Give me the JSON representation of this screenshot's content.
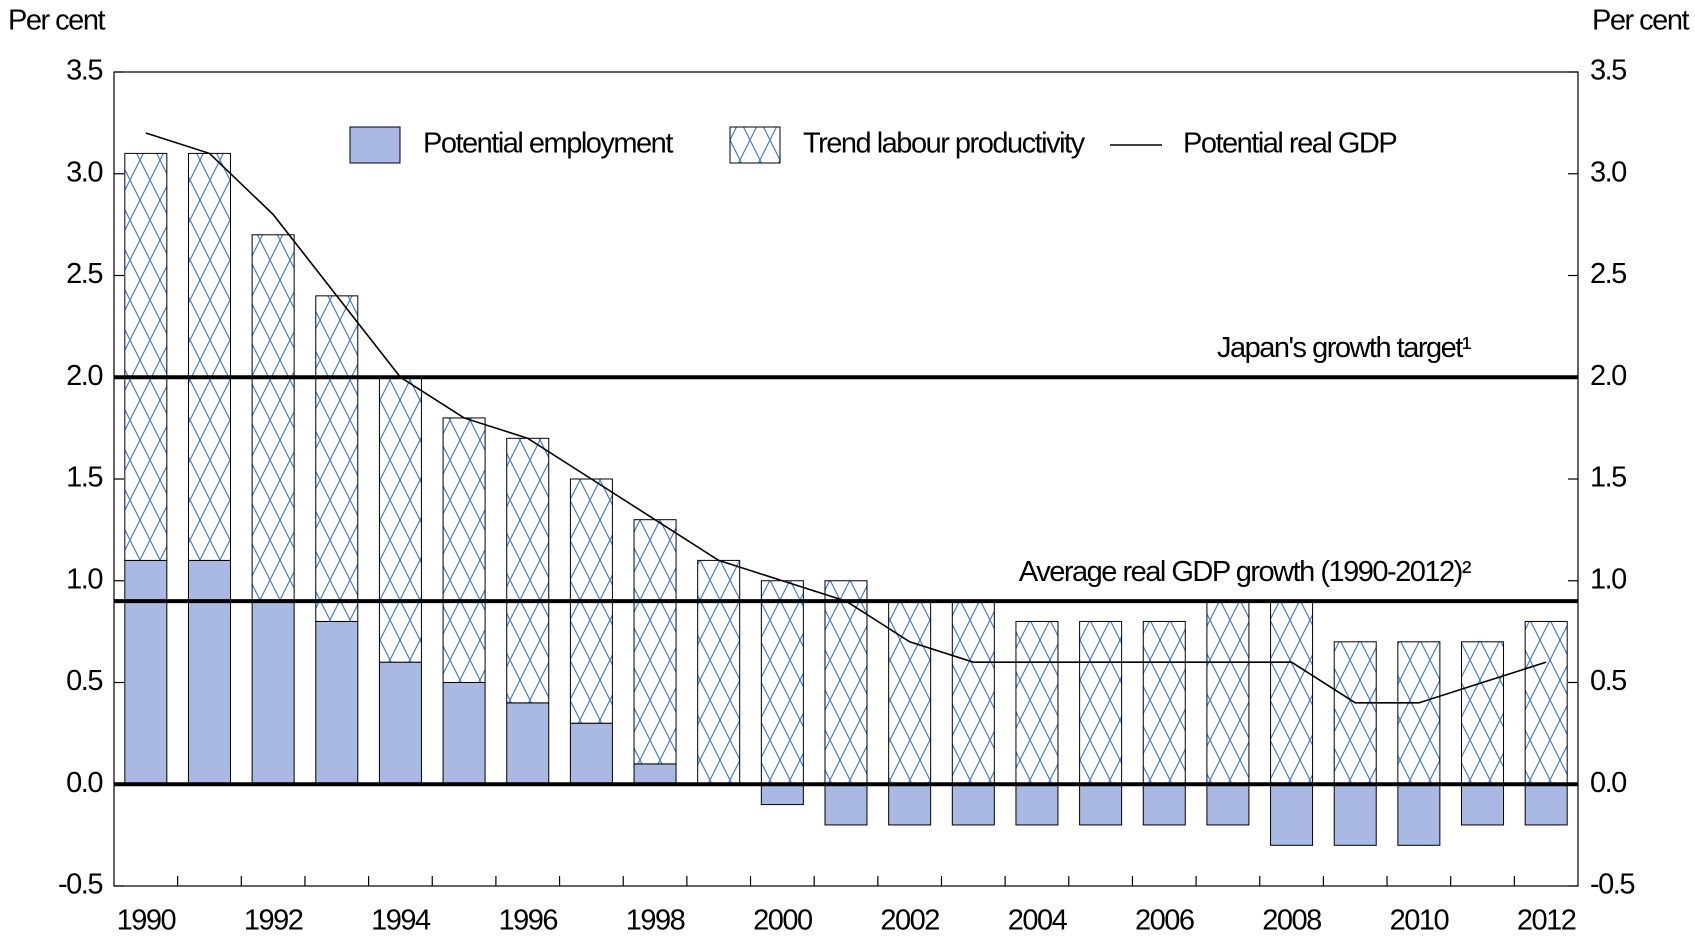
{
  "chart_data": {
    "type": "bar",
    "subtype": "stacked",
    "ylabel": "Per cent",
    "y2label": "Per cent",
    "categories": [
      "1990",
      null,
      "1992",
      null,
      "1994",
      null,
      "1996",
      null,
      "1998",
      null,
      "2000",
      null,
      "2002",
      null,
      "2004",
      null,
      "2006",
      null,
      "2008",
      null,
      "2010",
      null,
      "2012"
    ],
    "series": [
      {
        "name": "Potential employment",
        "color": "#a9b9e3",
        "type": "bar",
        "values": [
          1.1,
          1.1,
          0.9,
          0.8,
          0.6,
          0.5,
          0.4,
          0.3,
          0.1,
          0.0,
          -0.1,
          -0.2,
          -0.2,
          -0.2,
          -0.2,
          -0.2,
          -0.2,
          -0.2,
          -0.3,
          -0.3,
          -0.3,
          -0.2,
          -0.2
        ]
      },
      {
        "name": "Trend labour productivity",
        "color": "#4a7fc8",
        "type": "bar",
        "hatch": true,
        "values": [
          2.0,
          2.0,
          1.8,
          1.6,
          1.4,
          1.3,
          1.3,
          1.2,
          1.2,
          1.1,
          1.0,
          1.0,
          0.9,
          0.9,
          0.8,
          0.8,
          0.8,
          0.9,
          0.9,
          0.7,
          0.7,
          0.7,
          0.8
        ]
      },
      {
        "name": "Potential real GDP",
        "color": "#000000",
        "type": "line",
        "values": [
          3.2,
          3.1,
          2.8,
          2.4,
          2.0,
          1.8,
          1.7,
          1.5,
          1.3,
          1.1,
          1.0,
          0.9,
          0.7,
          0.6,
          0.6,
          0.6,
          0.6,
          0.6,
          0.6,
          0.4,
          0.4,
          0.5,
          0.6
        ]
      }
    ],
    "reference_lines": [
      {
        "value": 2.0,
        "label": "Japan's growth target¹"
      },
      {
        "value": 0.9,
        "label": "Average real GDP growth (1990-2012)²"
      }
    ],
    "ylim": [
      -0.5,
      3.5
    ],
    "yticks": [
      -0.5,
      {
        "value": 0,
        "label": "0.0"
      },
      0.5,
      {
        "value": 1,
        "label": "1.0"
      },
      1.5,
      {
        "value": 2,
        "label": "2.0"
      },
      2.5,
      {
        "value": 3,
        "label": "3.0"
      },
      3.5
    ],
    "y2lim": [
      -0.5,
      3.5
    ],
    "y2ticks": [
      -0.5,
      {
        "value": 0,
        "label": "0.0"
      },
      0.5,
      {
        "value": 1,
        "label": "1.0"
      },
      1.5,
      {
        "value": 2,
        "label": "2.0"
      },
      2.5,
      {
        "value": 3,
        "label": "3.0"
      },
      3.5
    ],
    "legend": "top"
  }
}
